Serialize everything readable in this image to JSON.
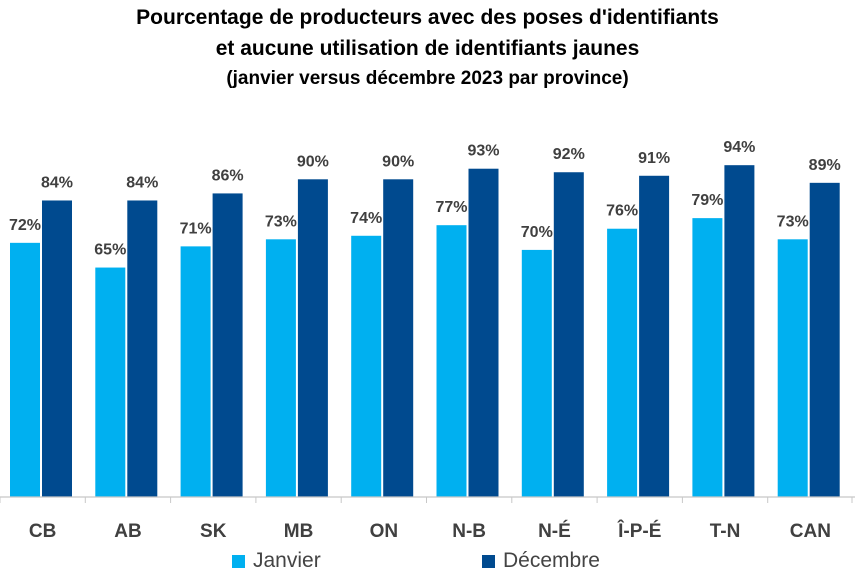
{
  "chart_data": {
    "type": "bar",
    "title_lines": [
      "Pourcentage de producteurs avec des poses d'identifiants",
      "et aucune utilisation de identifiants jaunes",
      "(janvier versus décembre 2023 par province)"
    ],
    "categories": [
      "CB",
      "AB",
      "SK",
      "MB",
      "ON",
      "N-B",
      "N-É",
      "Î-P-É",
      "T-N",
      "CAN"
    ],
    "series": [
      {
        "name": "Janvier",
        "color": "#00B0F0",
        "values": [
          72,
          65,
          71,
          73,
          74,
          77,
          70,
          76,
          79,
          73
        ],
        "labels": [
          "72%",
          "65%",
          "71%",
          "73%",
          "74%",
          "77%",
          "70%",
          "76%",
          "79%",
          "73%"
        ]
      },
      {
        "name": "Décembre",
        "color": "#004A8F",
        "values": [
          84,
          84,
          86,
          90,
          90,
          93,
          92,
          91,
          94,
          89
        ],
        "labels": [
          "84%",
          "84%",
          "86%",
          "90%",
          "90%",
          "93%",
          "92%",
          "91%",
          "94%",
          "89%"
        ]
      }
    ],
    "ylim": [
      0,
      100
    ],
    "xlabel": "",
    "ylabel": "",
    "grid": false,
    "legend_position": "bottom-left"
  }
}
